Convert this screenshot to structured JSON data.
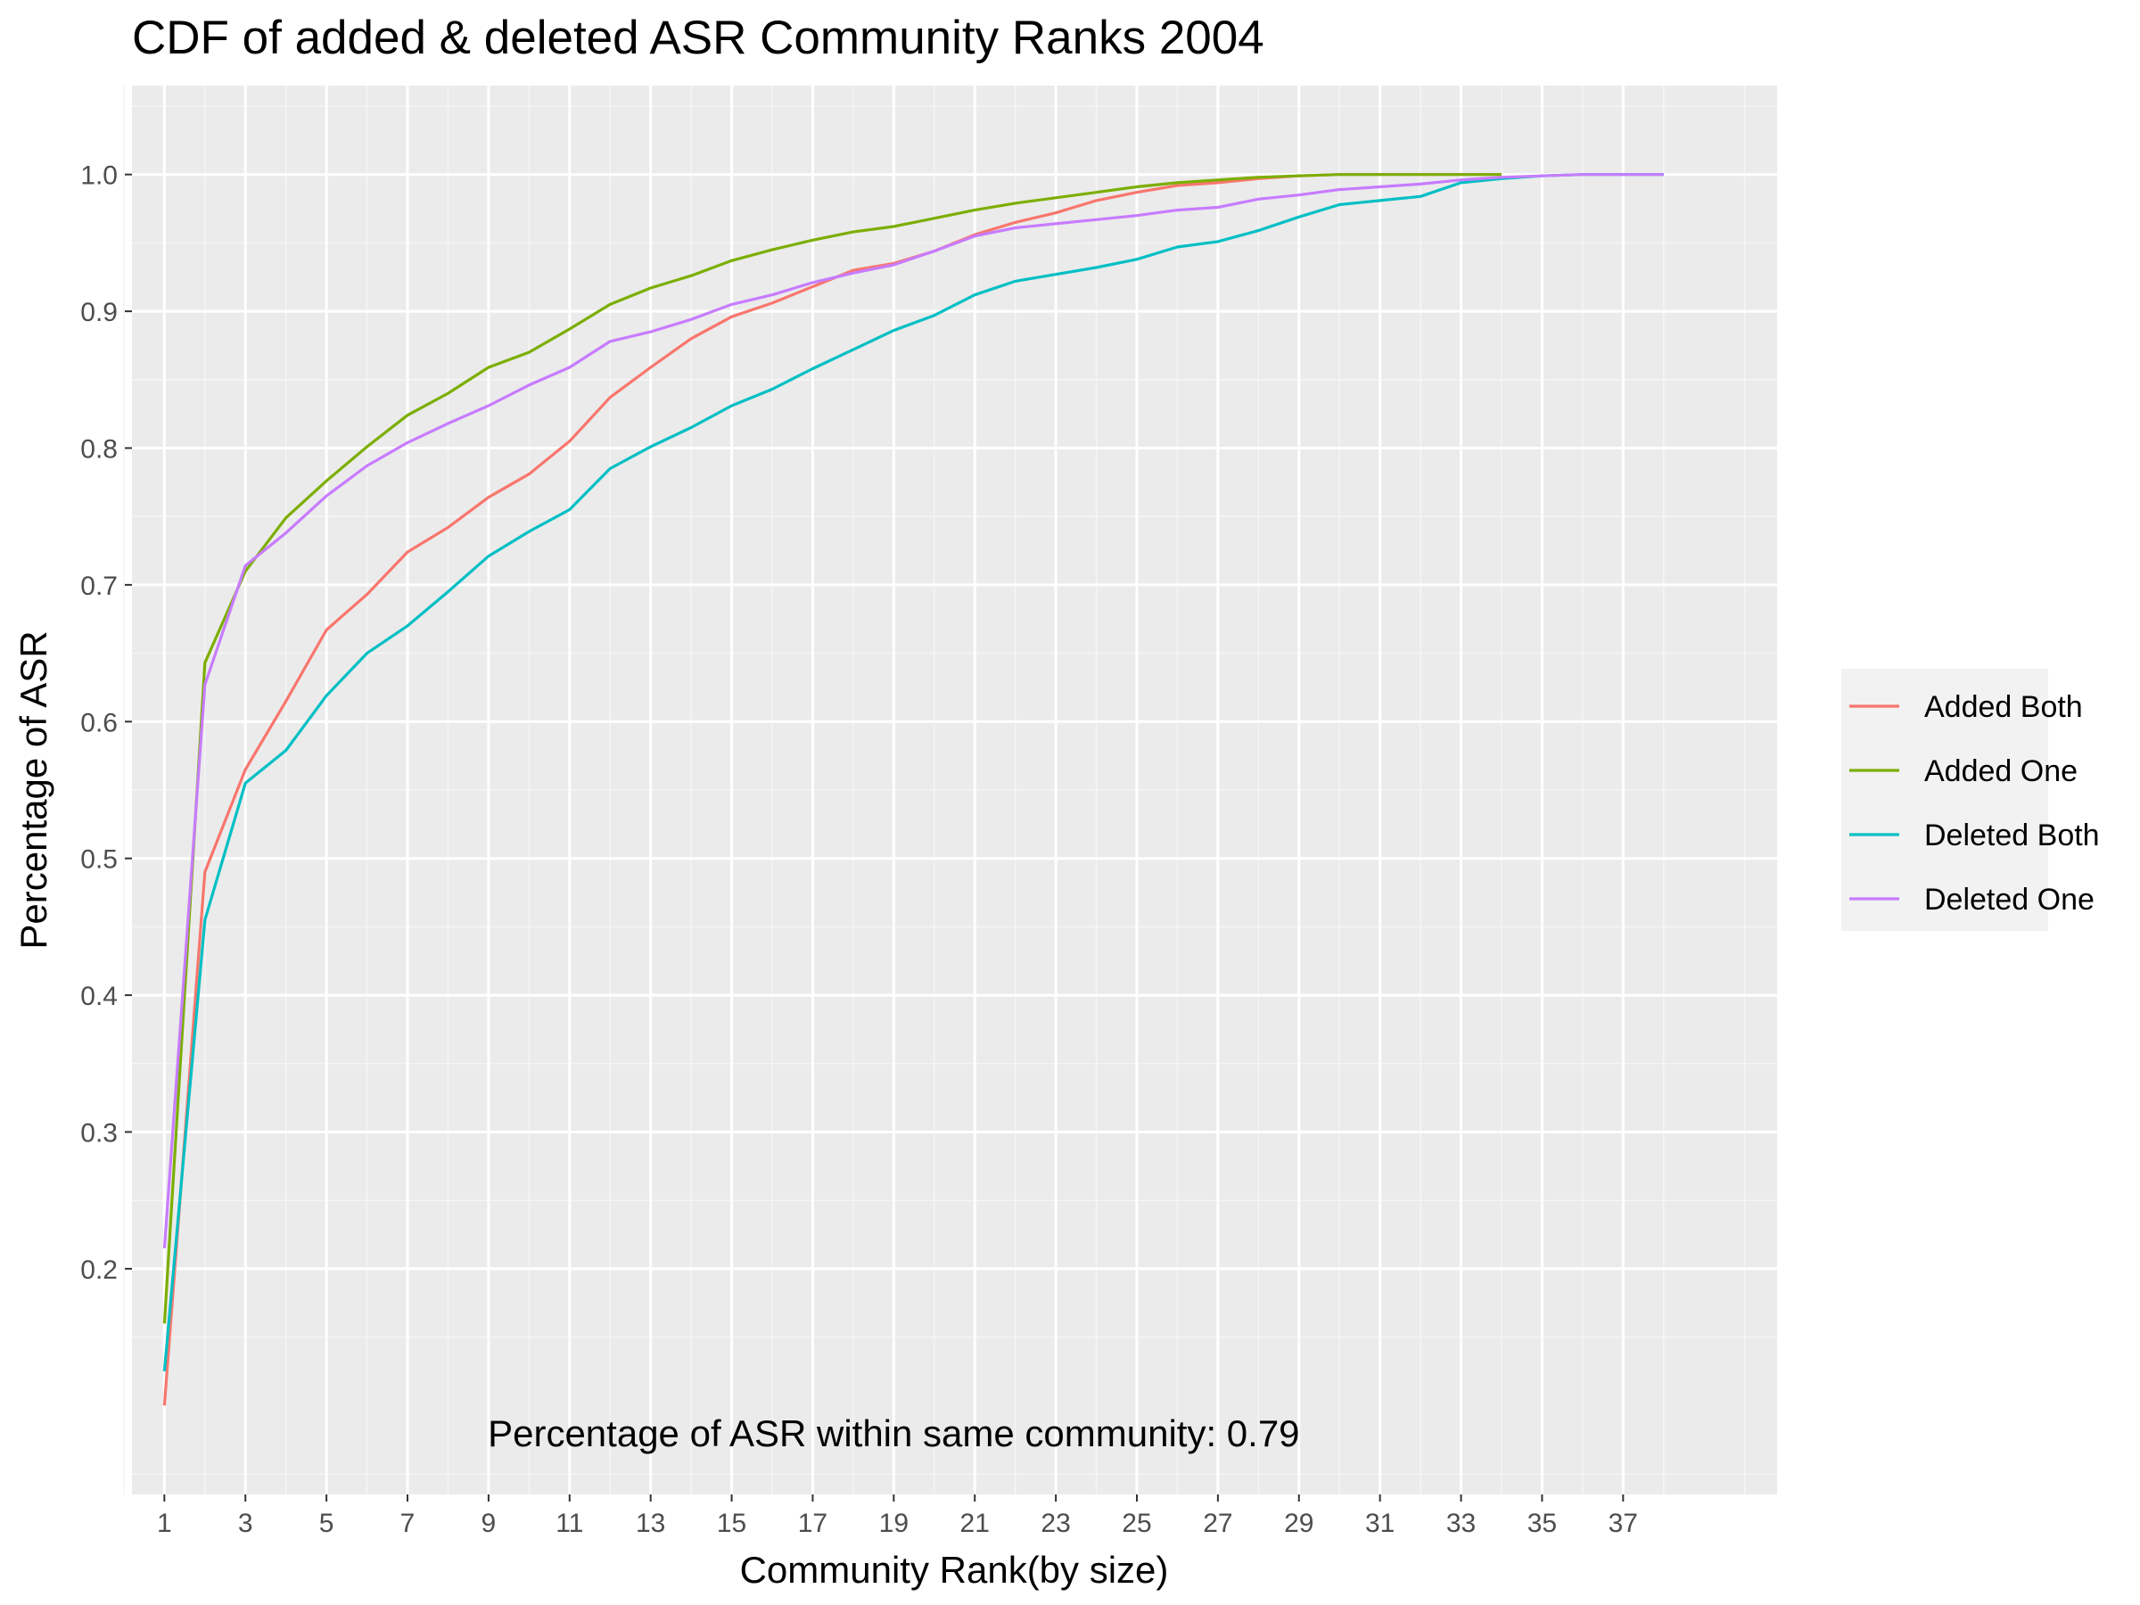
{
  "chart_data": {
    "type": "line",
    "title": "CDF of added & deleted ASR Community Ranks 2004",
    "xlabel": "Community Rank(by size)",
    "ylabel": "Percentage of ASR",
    "xlim": [
      0.2,
      40.8
    ],
    "ylim": [
      0.035,
      1.065
    ],
    "x_ticks": [
      1,
      3,
      5,
      7,
      9,
      11,
      13,
      15,
      17,
      19,
      21,
      23,
      25,
      27,
      29,
      31,
      33,
      35,
      37
    ],
    "x_tick_labels": [
      "1",
      "3",
      "5",
      "7",
      "9",
      "11",
      "13",
      "15",
      "17",
      "19",
      "21",
      "23",
      "25",
      "27",
      "29",
      "31",
      "33",
      "35",
      "37"
    ],
    "y_ticks": [
      0.2,
      0.3,
      0.4,
      0.5,
      0.6,
      0.7,
      0.8,
      0.9,
      1.0
    ],
    "y_tick_labels": [
      "0.2",
      "0.3",
      "0.4",
      "0.5",
      "0.6",
      "0.7",
      "0.8",
      "0.9",
      "1.0"
    ],
    "grid": true,
    "legend_position": "right",
    "annotation": "Percentage of ASR within same community: 0.79",
    "annotation_x": 19,
    "annotation_y": 0.08,
    "series": [
      {
        "name": "Added Both",
        "color": "#F8766D",
        "x": [
          1,
          2,
          3,
          4,
          5,
          6,
          7,
          8,
          9,
          10,
          11,
          12,
          13,
          14,
          15,
          16,
          17,
          18,
          19,
          20,
          21,
          22,
          23,
          24,
          25,
          26,
          27,
          28,
          29,
          30,
          31,
          32,
          33,
          34
        ],
        "values": [
          0.1,
          0.49,
          0.565,
          0.615,
          0.667,
          0.693,
          0.724,
          0.742,
          0.764,
          0.781,
          0.805,
          0.837,
          0.859,
          0.88,
          0.896,
          0.906,
          0.918,
          0.93,
          0.935,
          0.944,
          0.956,
          0.965,
          0.972,
          0.981,
          0.987,
          0.992,
          0.994,
          0.997,
          0.999,
          1.0,
          1.0,
          1.0,
          1.0,
          1.0
        ]
      },
      {
        "name": "Added One",
        "color": "#7CAE00",
        "x": [
          1,
          2,
          3,
          4,
          5,
          6,
          7,
          8,
          9,
          10,
          11,
          12,
          13,
          14,
          15,
          16,
          17,
          18,
          19,
          20,
          21,
          22,
          23,
          24,
          25,
          26,
          27,
          28,
          29,
          30,
          31,
          32,
          33,
          34
        ],
        "values": [
          0.16,
          0.643,
          0.71,
          0.749,
          0.776,
          0.801,
          0.824,
          0.84,
          0.859,
          0.87,
          0.887,
          0.905,
          0.917,
          0.926,
          0.937,
          0.945,
          0.952,
          0.958,
          0.962,
          0.968,
          0.974,
          0.979,
          0.983,
          0.987,
          0.991,
          0.994,
          0.996,
          0.998,
          0.999,
          1.0,
          1.0,
          1.0,
          1.0,
          1.0
        ]
      },
      {
        "name": "Deleted Both",
        "color": "#00BFC4",
        "x": [
          1,
          2,
          3,
          4,
          5,
          6,
          7,
          8,
          9,
          10,
          11,
          12,
          13,
          14,
          15,
          16,
          17,
          18,
          19,
          20,
          21,
          22,
          23,
          24,
          25,
          26,
          27,
          28,
          29,
          30,
          31,
          32,
          33,
          34,
          35,
          36,
          37,
          38
        ],
        "values": [
          0.125,
          0.455,
          0.555,
          0.579,
          0.619,
          0.65,
          0.67,
          0.695,
          0.721,
          0.739,
          0.755,
          0.785,
          0.801,
          0.815,
          0.831,
          0.843,
          0.858,
          0.872,
          0.886,
          0.897,
          0.912,
          0.922,
          0.927,
          0.932,
          0.938,
          0.947,
          0.951,
          0.959,
          0.969,
          0.978,
          0.981,
          0.984,
          0.994,
          0.997,
          0.999,
          1.0,
          1.0,
          1.0
        ]
      },
      {
        "name": "Deleted One",
        "color": "#C77CFF",
        "x": [
          1,
          2,
          3,
          4,
          5,
          6,
          7,
          8,
          9,
          10,
          11,
          12,
          13,
          14,
          15,
          16,
          17,
          18,
          19,
          20,
          21,
          22,
          23,
          24,
          25,
          26,
          27,
          28,
          29,
          30,
          31,
          32,
          33,
          34,
          35,
          36,
          37,
          38
        ],
        "values": [
          0.215,
          0.627,
          0.714,
          0.738,
          0.765,
          0.787,
          0.804,
          0.818,
          0.831,
          0.846,
          0.859,
          0.878,
          0.885,
          0.894,
          0.905,
          0.912,
          0.921,
          0.928,
          0.934,
          0.944,
          0.955,
          0.961,
          0.964,
          0.967,
          0.97,
          0.974,
          0.976,
          0.982,
          0.985,
          0.989,
          0.991,
          0.993,
          0.996,
          0.998,
          0.999,
          1.0,
          1.0,
          1.0
        ]
      }
    ]
  }
}
